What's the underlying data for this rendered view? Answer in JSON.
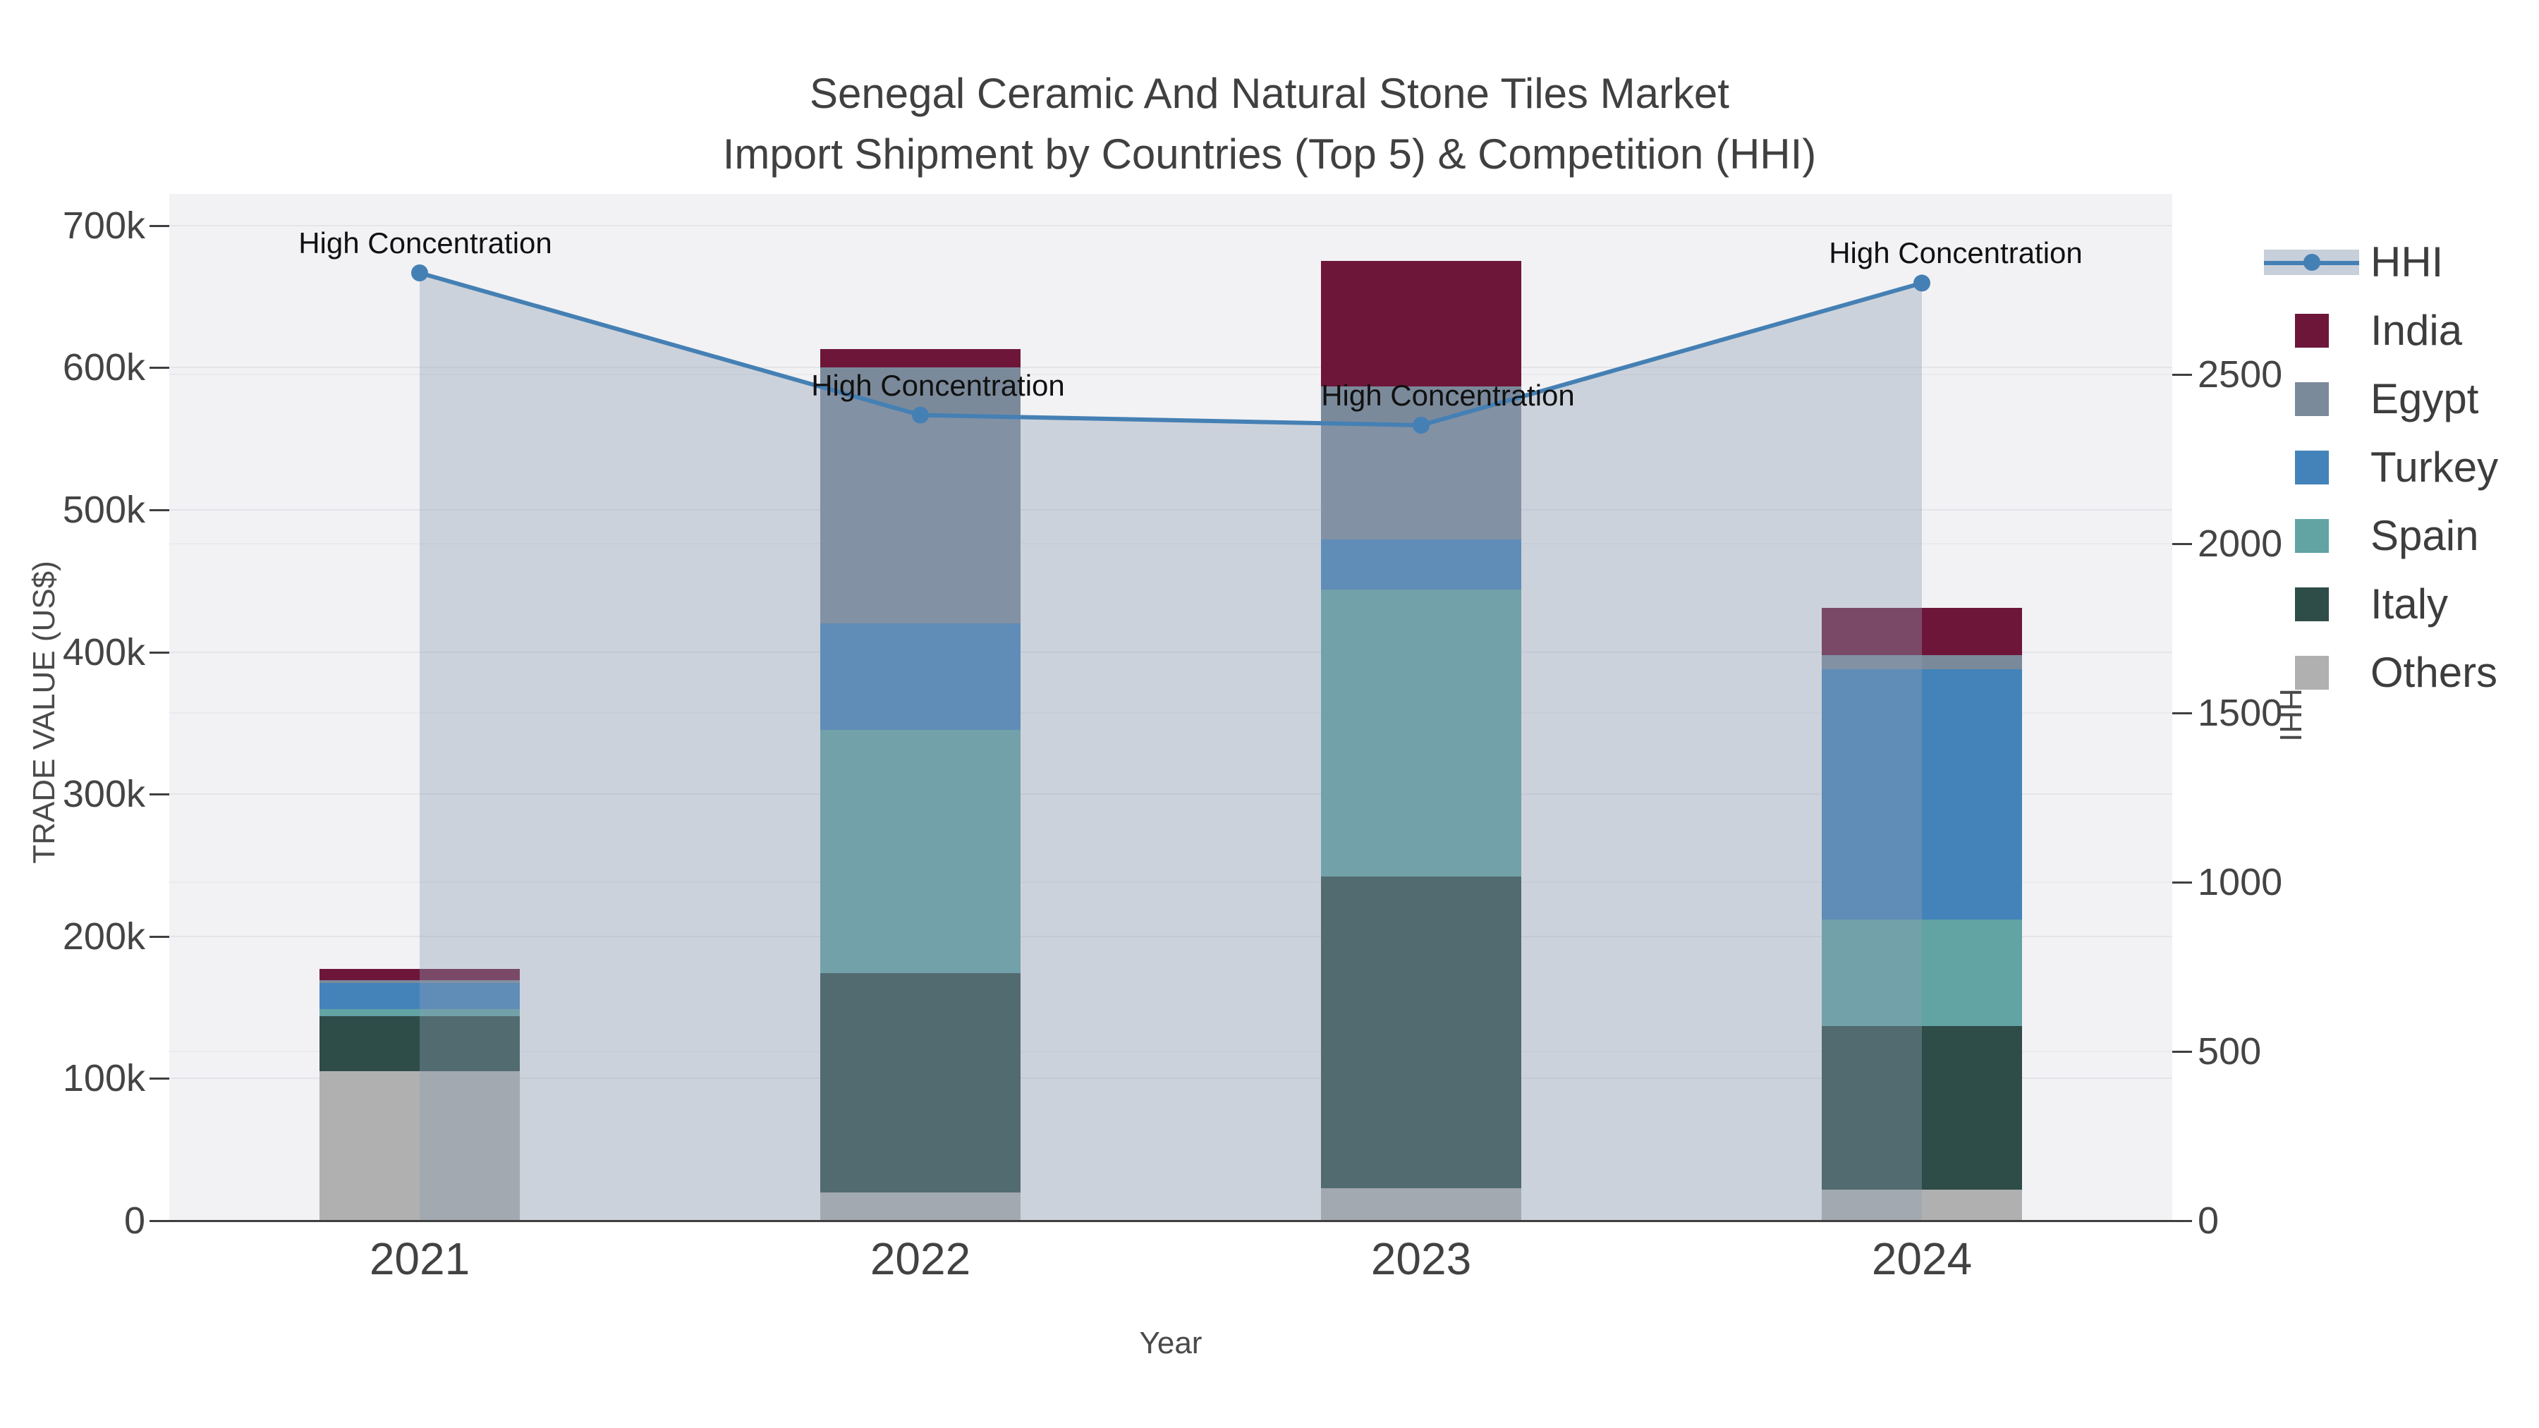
{
  "title": {
    "line1": "Senegal Ceramic And Natural Stone Tiles Market",
    "line2": "Import Shipment by Countries (Top 5) & Competition (HHI)"
  },
  "axes": {
    "x": {
      "title": "Year",
      "tick_labels": [
        "2021",
        "2022",
        "2023",
        "2024"
      ]
    },
    "y_left": {
      "title": "TRADE VALUE (US$)",
      "tick_labels": [
        "0",
        "100k",
        "200k",
        "300k",
        "400k",
        "500k",
        "600k",
        "700k"
      ],
      "tick_values_usd": [
        0,
        100000,
        200000,
        300000,
        400000,
        500000,
        600000,
        700000
      ]
    },
    "y_right": {
      "title": "HHI",
      "tick_labels": [
        "0",
        "500",
        "1000",
        "1500",
        "2000",
        "2500"
      ],
      "tick_values": [
        0,
        500,
        1000,
        1500,
        2000,
        2500
      ]
    }
  },
  "legend": {
    "items": [
      {
        "label": "HHI",
        "marker": "line"
      },
      {
        "label": "India",
        "marker": "square"
      },
      {
        "label": "Egypt",
        "marker": "square"
      },
      {
        "label": "Turkey",
        "marker": "square"
      },
      {
        "label": "Spain",
        "marker": "square"
      },
      {
        "label": "Italy",
        "marker": "square"
      },
      {
        "label": "Others",
        "marker": "square"
      }
    ]
  },
  "annotations": [
    {
      "text": "High Concentration",
      "year": "2021"
    },
    {
      "text": "High Concentration",
      "year": "2022"
    },
    {
      "text": "High Concentration",
      "year": "2023"
    },
    {
      "text": "High Concentration",
      "year": "2024"
    }
  ],
  "chart_data": {
    "type": "bar",
    "subtype": "stacked-bars-with-line-area-overlay",
    "title": "Senegal Ceramic And Natural Stone Tiles Market Import Shipment by Countries (Top 5) & Competition (HHI)",
    "xlabel": "Year",
    "ylabel_left": "TRADE VALUE (US$)",
    "ylabel_right": "HHI",
    "categories": [
      "2021",
      "2022",
      "2023",
      "2024"
    ],
    "stack_order_bottom_to_top": [
      "Others",
      "Italy",
      "Spain",
      "Turkey",
      "Egypt",
      "India"
    ],
    "series": [
      {
        "name": "India",
        "axis": "left",
        "values_usd": [
          8000,
          13000,
          88000,
          33000
        ]
      },
      {
        "name": "Egypt",
        "axis": "left",
        "values_usd": [
          2000,
          180000,
          108000,
          10000
        ]
      },
      {
        "name": "Turkey",
        "axis": "left",
        "values_usd": [
          18000,
          75000,
          35000,
          176000
        ]
      },
      {
        "name": "Spain",
        "axis": "left",
        "values_usd": [
          5000,
          171000,
          202000,
          75000
        ]
      },
      {
        "name": "Italy",
        "axis": "left",
        "values_usd": [
          39000,
          154000,
          219000,
          115000
        ]
      },
      {
        "name": "Others",
        "axis": "left",
        "values_usd": [
          105000,
          20000,
          23000,
          22000
        ]
      }
    ],
    "bar_totals_usd": [
      177000,
      613000,
      675000,
      431000
    ],
    "line_series": {
      "name": "HHI",
      "axis": "right",
      "values": [
        2800,
        2380,
        2350,
        2770
      ],
      "area_fill": true
    },
    "axis_ranges": {
      "left_usd": [
        0,
        723000
      ],
      "right_hhi": [
        0,
        3035
      ]
    },
    "grid": true,
    "legend_position": "top-right"
  },
  "colors": {
    "plot_bg": "#f2f2f4",
    "grid": "#e4e4ea",
    "grid_right": "#eaeaef",
    "axis_line": "#3f3f3f",
    "hhi_line": "#4580b4",
    "hhi_fill": "rgba(141,157,178,0.38)",
    "hhi_legend_band": "#c6cfda",
    "series": {
      "India": "#6e163a",
      "Egypt": "#7b8a9b",
      "Turkey": "#4383ba",
      "Spain": "#62a3a4",
      "Italy": "#2e4c48",
      "Others": "#b0b0b0"
    }
  }
}
